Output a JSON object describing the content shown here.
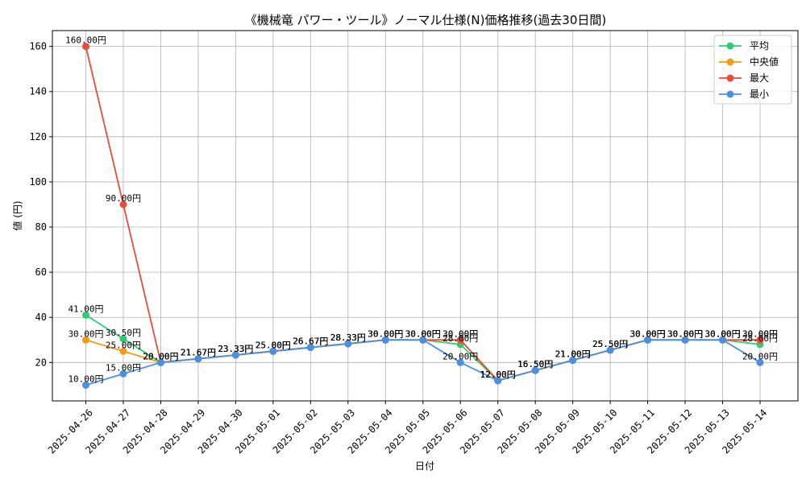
{
  "chart_data": {
    "type": "line",
    "title": "《機械竜 パワー・ツール》ノーマル仕様(N)価格推移(過去30日間)",
    "xlabel": "日付",
    "ylabel": "値 (円)",
    "ylim": [
      3,
      167
    ],
    "yticks": [
      20,
      40,
      60,
      80,
      100,
      120,
      140,
      160
    ],
    "grid": true,
    "legend_position": "top-right",
    "categories": [
      "2025-04-26",
      "2025-04-27",
      "2025-04-28",
      "2025-04-29",
      "2025-04-30",
      "2025-05-01",
      "2025-05-02",
      "2025-05-03",
      "2025-05-04",
      "2025-05-05",
      "2025-05-06",
      "2025-05-07",
      "2025-05-08",
      "2025-05-09",
      "2025-05-10",
      "2025-05-11",
      "2025-05-12",
      "2025-05-13",
      "2025-05-14"
    ],
    "series": [
      {
        "name": "平均",
        "color": "#2ecc71",
        "values": [
          41.0,
          30.5,
          20.0,
          21.67,
          23.33,
          25.0,
          26.67,
          28.33,
          30.0,
          30.0,
          28.0,
          12.0,
          16.5,
          21.0,
          25.5,
          30.0,
          30.0,
          30.0,
          28.0
        ]
      },
      {
        "name": "中央値",
        "color": "#f39c12",
        "values": [
          30.0,
          25.0,
          20.0,
          21.67,
          23.33,
          25.0,
          26.67,
          28.33,
          30.0,
          30.0,
          30.0,
          12.0,
          16.5,
          21.0,
          25.5,
          30.0,
          30.0,
          30.0,
          30.0
        ]
      },
      {
        "name": "最大",
        "color": "#e74c3c",
        "values": [
          160.0,
          90.0,
          20.0,
          21.67,
          23.33,
          25.0,
          26.67,
          28.33,
          30.0,
          30.0,
          30.0,
          12.0,
          16.5,
          21.0,
          25.5,
          30.0,
          30.0,
          30.0,
          30.0
        ]
      },
      {
        "name": "最小",
        "color": "#4a90e2",
        "values": [
          10.0,
          15.0,
          20.0,
          21.67,
          23.33,
          25.0,
          26.67,
          28.33,
          30.0,
          30.0,
          20.0,
          12.0,
          16.5,
          21.0,
          25.5,
          30.0,
          30.0,
          30.0,
          20.0
        ]
      }
    ],
    "value_suffix": "円"
  }
}
